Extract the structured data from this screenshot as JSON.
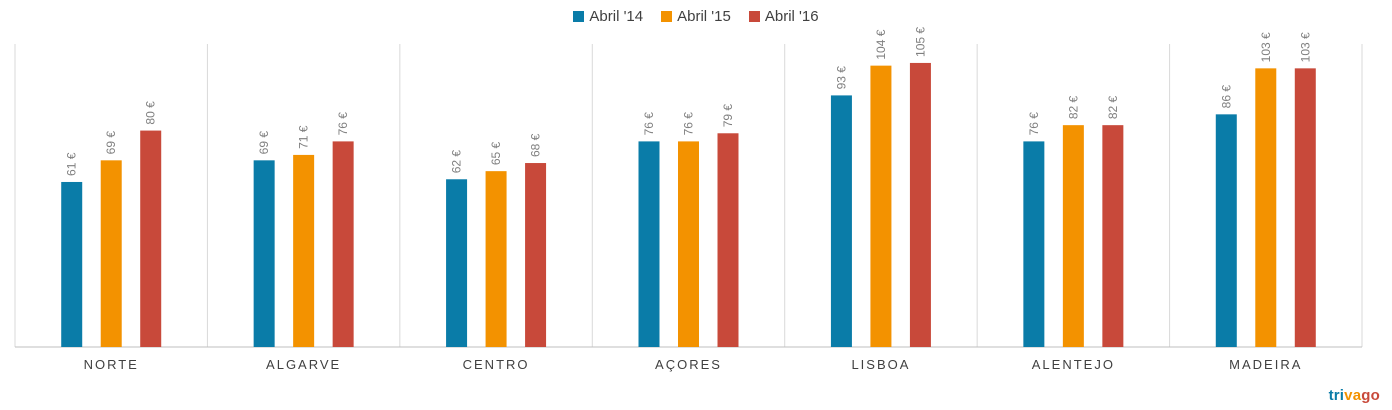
{
  "chart_data": {
    "type": "bar",
    "categories": [
      "NORTE",
      "ALGARVE",
      "CENTRO",
      "AÇORES",
      "LISBOA",
      "ALENTEJO",
      "MADEIRA"
    ],
    "series": [
      {
        "name": "Abril '14",
        "color": "#0a7ca8",
        "values": [
          61,
          69,
          62,
          76,
          93,
          76,
          86
        ]
      },
      {
        "name": "Abril '15",
        "color": "#f39200",
        "values": [
          69,
          71,
          65,
          76,
          104,
          82,
          103
        ]
      },
      {
        "name": "Abril '16",
        "color": "#c8493a",
        "values": [
          80,
          76,
          68,
          79,
          105,
          82,
          103
        ]
      }
    ],
    "value_suffix": " €",
    "ylim": [
      0,
      112
    ],
    "legend_position": "top-center",
    "grid": "vertical separators between categories"
  },
  "brand": {
    "parts": [
      {
        "text": "tri",
        "color": "#0a7ca8"
      },
      {
        "text": "va",
        "color": "#f39200"
      },
      {
        "text": "go",
        "color": "#c8493a"
      }
    ]
  }
}
